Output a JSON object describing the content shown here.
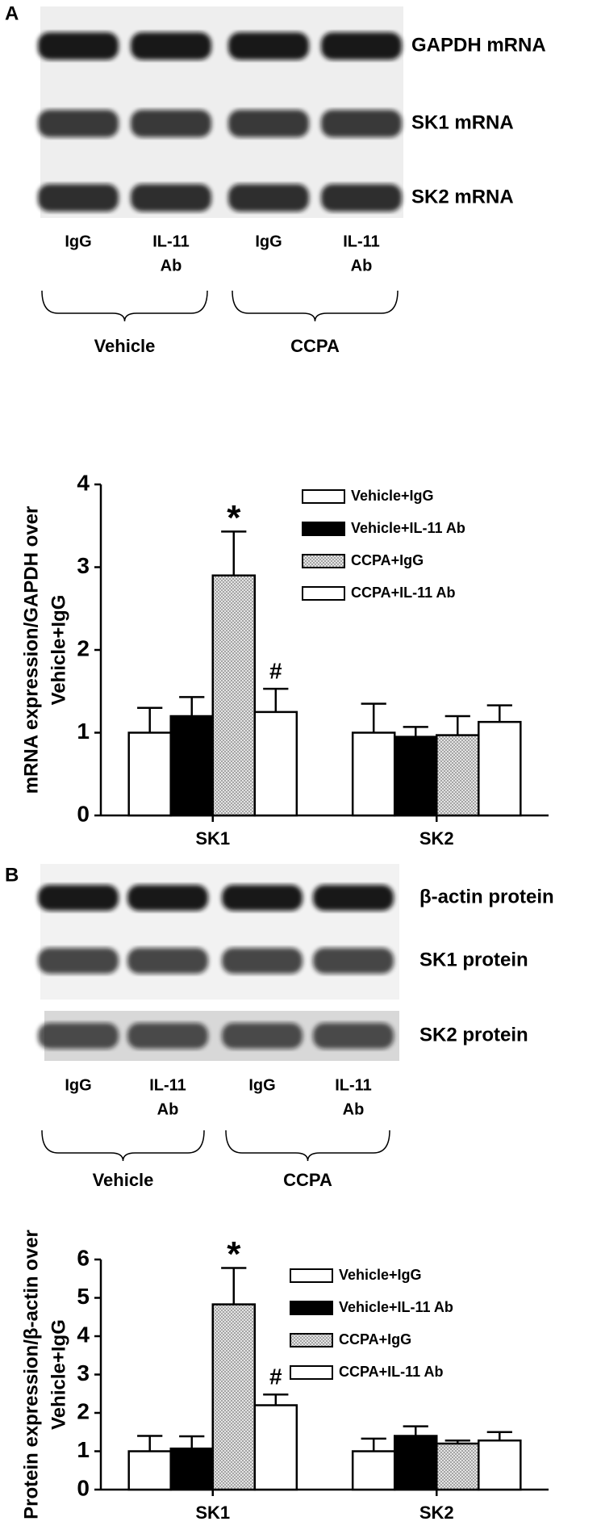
{
  "panels": [
    {
      "label": "A",
      "blot_labels": [
        "GAPDH mRNA",
        "SK1 mRNA",
        "SK2 mRNA"
      ],
      "lanes": [
        [
          "IgG"
        ],
        [
          "IL-11",
          "Ab"
        ],
        [
          "IgG"
        ],
        [
          "IL-11",
          "Ab"
        ]
      ],
      "groups": [
        "Vehicle",
        "CCPA"
      ]
    },
    {
      "label": "B",
      "blot_labels": [
        "β-actin protein",
        "SK1 protein",
        "SK2 protein"
      ],
      "lanes": [
        [
          "IgG"
        ],
        [
          "IL-11",
          "Ab"
        ],
        [
          "IgG"
        ],
        [
          "IL-11",
          "Ab"
        ]
      ],
      "groups": [
        "Vehicle",
        "CCPA"
      ]
    }
  ],
  "chart_data": [
    {
      "type": "bar",
      "y_label": [
        "mRNA expression/GAPDH over",
        "Vehicle+IgG"
      ],
      "categories": [
        "SK1",
        "SK2"
      ],
      "ylim": [
        0,
        4
      ],
      "yticks": [
        0,
        1,
        2,
        3,
        4
      ],
      "series": [
        {
          "name": "Vehicle+IgG",
          "color": "#ffffff",
          "values": [
            1.0,
            1.0
          ],
          "errors": [
            0.3,
            0.35
          ],
          "annotations": [
            null,
            null
          ]
        },
        {
          "name": "Vehicle+IL-11 Ab",
          "color": "#000000",
          "values": [
            1.2,
            0.95
          ],
          "errors": [
            0.23,
            0.12
          ],
          "annotations": [
            null,
            null
          ]
        },
        {
          "name": "CCPA+IgG",
          "color": "#c8c8c8",
          "pattern": "dotted",
          "values": [
            2.9,
            0.97
          ],
          "errors": [
            0.53,
            0.23
          ],
          "annotations": [
            "*",
            null
          ]
        },
        {
          "name": "CCPA+IL-11 Ab",
          "color": "#ffffff",
          "values": [
            1.25,
            1.13
          ],
          "errors": [
            0.28,
            0.2
          ],
          "annotations": [
            "#",
            null
          ]
        }
      ]
    },
    {
      "type": "bar",
      "y_label": [
        "Protein expression/β-actin over",
        "Vehicle+IgG"
      ],
      "categories": [
        "SK1",
        "SK2"
      ],
      "ylim": [
        0,
        6
      ],
      "yticks": [
        0,
        1,
        2,
        3,
        4,
        5,
        6
      ],
      "series": [
        {
          "name": "Vehicle+IgG",
          "color": "#ffffff",
          "values": [
            1.0,
            1.0
          ],
          "errors": [
            0.4,
            0.33
          ],
          "annotations": [
            null,
            null
          ]
        },
        {
          "name": "Vehicle+IL-11 Ab",
          "color": "#000000",
          "values": [
            1.07,
            1.4
          ],
          "errors": [
            0.32,
            0.25
          ],
          "annotations": [
            null,
            null
          ]
        },
        {
          "name": "CCPA+IgG",
          "color": "#c8c8c8",
          "pattern": "dotted",
          "values": [
            4.83,
            1.2
          ],
          "errors": [
            0.95,
            0.08
          ],
          "annotations": [
            "*",
            null
          ]
        },
        {
          "name": "CCPA+IL-11 Ab",
          "color": "#ffffff",
          "values": [
            2.2,
            1.28
          ],
          "errors": [
            0.28,
            0.22
          ],
          "annotations": [
            "#",
            null
          ]
        }
      ]
    }
  ]
}
